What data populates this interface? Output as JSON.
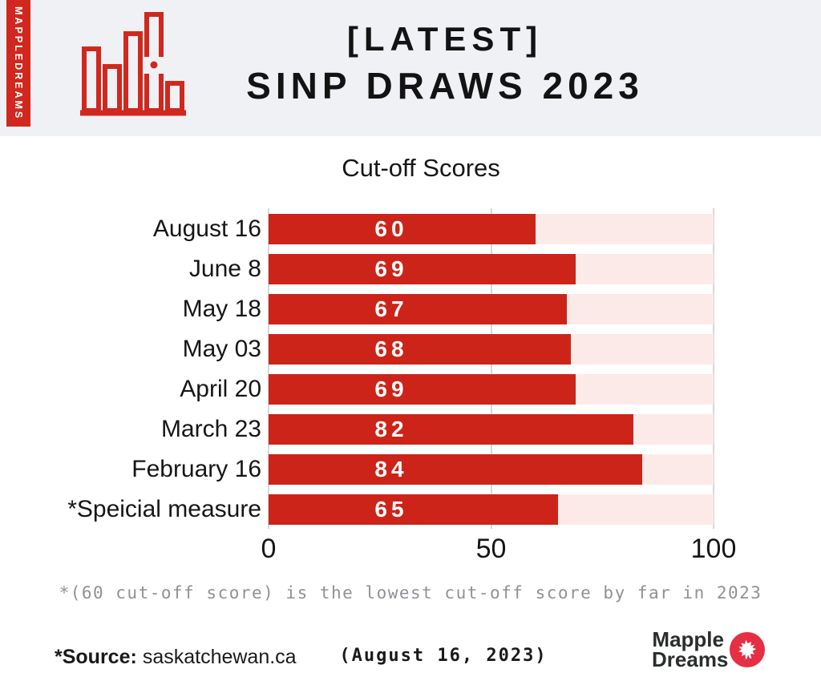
{
  "header": {
    "brand_vertical": "MAPPLEDREAMS",
    "title_line1": "[LATEST]",
    "title_line2": "SINP DRAWS 2023"
  },
  "chart_data": {
    "type": "bar",
    "orientation": "horizontal",
    "title": "Cut-off Scores",
    "categories": [
      "August 16",
      "June 8",
      "May 18",
      "May 03",
      "April 20",
      "March 23",
      "February 16",
      "*Speicial measure"
    ],
    "values": [
      60,
      69,
      67,
      68,
      69,
      82,
      84,
      65
    ],
    "xlabel": "",
    "ylabel": "",
    "xlim": [
      0,
      100
    ],
    "x_ticks": [
      0,
      50,
      100
    ],
    "grid": true,
    "legend": false,
    "bar_color": "#cc2418",
    "track_color": "#fceae9",
    "value_label_color": "#ffffff"
  },
  "footnote": "*(60 cut-off score) is the lowest cut-off score by far in 2023",
  "footer": {
    "source_label": "*Source:",
    "source_value": "saskatchewan.ca",
    "date_note": "(August 16, 2023)",
    "logo": {
      "line1": "Mapple",
      "line2": "Dreams",
      "icon": "maple-leaf-icon",
      "circle_color": "#e62e44"
    }
  },
  "colors": {
    "header_bg": "#f0f1f5",
    "brand_red": "#d0281e",
    "gridline": "#d8d8d8",
    "footnote_gray": "#8e9196",
    "text_dark": "#141414"
  }
}
